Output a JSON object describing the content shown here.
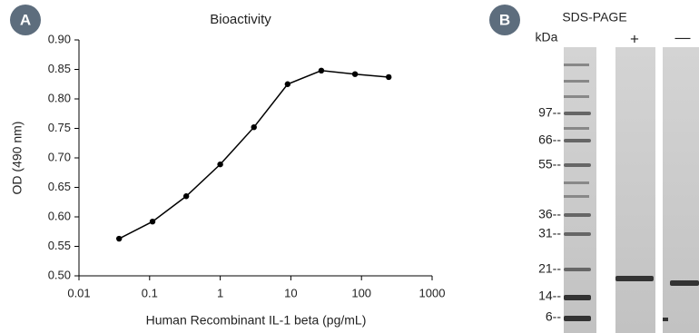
{
  "panel_labels": [
    "A",
    "B"
  ],
  "chart_data": {
    "type": "line",
    "title": "Bioactivity",
    "x_label": "Human Recombinant IL-1 beta (pg/mL)",
    "y_label": "OD (490 nm)",
    "x": [
      0.037,
      0.11,
      0.33,
      1,
      3,
      9,
      27,
      81,
      243
    ],
    "series": [
      {
        "color": "#000000",
        "values": [
          0.563,
          0.592,
          0.635,
          0.689,
          0.752,
          0.825,
          0.848,
          0.842,
          0.837
        ]
      }
    ],
    "x_scale": "log",
    "xlim": [
      0.01,
      1000
    ],
    "xticks": [
      0.01,
      0.1,
      1,
      10,
      100,
      1000
    ],
    "ylim": [
      0.5,
      0.9
    ],
    "yticks": [
      {
        "value": 0.5,
        "label": "0.50"
      },
      0.55,
      {
        "value": 0.6,
        "label": "0.60"
      },
      0.65,
      {
        "value": 0.7,
        "label": "0.70"
      },
      0.75,
      {
        "value": 0.8,
        "label": "0.80"
      },
      0.85,
      {
        "value": 0.9,
        "label": "0.90"
      }
    ],
    "markers": true
  },
  "gel": {
    "title": "SDS-PAGE",
    "unit": "kDa",
    "lanes": [
      "+",
      "—"
    ],
    "ladder": [
      "97--",
      "66--",
      "55--",
      "36--",
      "31--",
      "21--",
      "14--",
      "6--"
    ]
  }
}
